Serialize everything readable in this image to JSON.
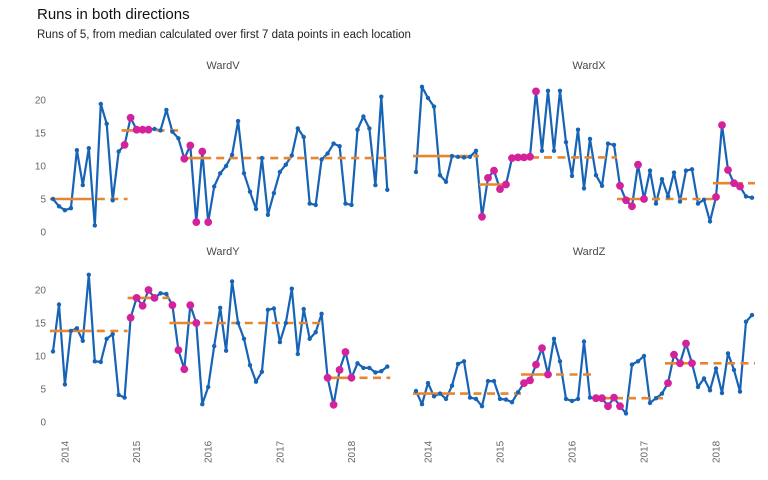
{
  "title": "Runs in both directions",
  "subtitle": "Runs of 5, from median calculated over first 7 data points in each location",
  "colors": {
    "line": "#1763b5",
    "highlight": "#d4219c",
    "median": "#e8862f",
    "axis_text": "#666666",
    "strip_text": "#4a4a4a"
  },
  "axes": {
    "y_ticks": [
      0,
      5,
      10,
      15,
      20
    ],
    "x_ticks": [
      "2014",
      "2015",
      "2016",
      "2017",
      "2018"
    ],
    "x_tick_indices": [
      2,
      14,
      26,
      38,
      50
    ],
    "ylim": [
      0,
      23
    ]
  },
  "chart_data": [
    {
      "type": "line",
      "name": "WardV",
      "values": [
        5.0,
        3.9,
        3.3,
        3.6,
        12.4,
        7.1,
        12.7,
        1.0,
        19.4,
        16.4,
        4.8,
        12.2,
        13.2,
        17.3,
        15.5,
        15.5,
        15.5,
        15.6,
        15.4,
        18.5,
        15.2,
        14.2,
        11.1,
        13.1,
        1.5,
        12.2,
        1.5,
        6.9,
        8.9,
        10.0,
        11.7,
        16.8,
        8.9,
        6.1,
        3.5,
        11.2,
        2.6,
        5.9,
        9.1,
        10.2,
        11.6,
        15.7,
        14.4,
        4.3,
        4.1,
        11.0,
        11.9,
        13.4,
        13.0,
        4.3,
        4.1,
        15.5,
        17.5,
        15.7,
        7.1,
        20.5,
        6.4
      ],
      "highlight_indices": [
        12,
        13,
        14,
        15,
        16,
        22,
        23,
        24,
        25,
        26
      ],
      "medians": [
        {
          "value": 5.0,
          "solid": [
            0,
            6
          ],
          "dashed": [
            7,
            12
          ]
        },
        {
          "value": 15.4,
          "solid": [
            12,
            16
          ],
          "dashed": [
            17,
            21
          ]
        },
        {
          "value": 11.2,
          "solid": [
            22,
            26
          ],
          "dashed": [
            27,
            56
          ]
        }
      ]
    },
    {
      "type": "line",
      "name": "WardX",
      "values": [
        9.1,
        22.0,
        20.3,
        19.0,
        8.6,
        7.6,
        11.5,
        11.4,
        11.3,
        11.4,
        12.3,
        2.3,
        8.2,
        9.3,
        6.5,
        7.2,
        11.2,
        11.3,
        11.3,
        11.4,
        21.3,
        12.3,
        21.4,
        12.3,
        21.4,
        13.6,
        8.5,
        15.5,
        6.6,
        14.1,
        8.6,
        7.0,
        13.4,
        13.2,
        7.0,
        4.8,
        3.9,
        10.2,
        5.0,
        9.3,
        4.3,
        8.0,
        5.4,
        9.0,
        4.6,
        9.3,
        9.5,
        4.3,
        4.9,
        1.6,
        5.3,
        16.2,
        9.4,
        7.4,
        6.9,
        5.4,
        5.2
      ],
      "highlight_indices": [
        11,
        12,
        13,
        14,
        15,
        16,
        17,
        18,
        19,
        20,
        34,
        35,
        36,
        37,
        38,
        50,
        51,
        52,
        53,
        54
      ],
      "medians": [
        {
          "value": 11.5,
          "solid": [
            0,
            6
          ],
          "dashed": [
            7,
            10
          ]
        },
        {
          "value": 7.2,
          "solid": [
            11,
            15
          ]
        },
        {
          "value": 11.3,
          "solid": [
            16,
            20
          ],
          "dashed": [
            21,
            33
          ]
        },
        {
          "value": 5.0,
          "solid": [
            34,
            38
          ],
          "dashed": [
            39,
            49
          ]
        },
        {
          "value": 7.4,
          "solid": [
            50,
            54
          ],
          "dashed": [
            55,
            56
          ]
        }
      ]
    },
    {
      "type": "line",
      "name": "WardY",
      "values": [
        10.7,
        17.8,
        5.7,
        13.8,
        14.2,
        12.3,
        22.3,
        9.2,
        9.1,
        12.6,
        13.3,
        4.1,
        3.7,
        15.8,
        18.8,
        17.6,
        20.0,
        18.8,
        19.5,
        19.4,
        17.7,
        10.9,
        8.0,
        17.7,
        15.0,
        2.7,
        5.3,
        11.5,
        17.3,
        10.8,
        21.3,
        15.0,
        12.6,
        8.6,
        6.1,
        7.6,
        17.0,
        17.2,
        12.1,
        15.0,
        20.2,
        10.3,
        17.1,
        12.6,
        13.6,
        16.4,
        6.7,
        2.6,
        7.9,
        10.6,
        6.7,
        8.9,
        8.2,
        8.2,
        7.5,
        7.7,
        8.4
      ],
      "highlight_indices": [
        13,
        14,
        15,
        16,
        17,
        20,
        21,
        22,
        23,
        24,
        46,
        47,
        48,
        49,
        50
      ],
      "medians": [
        {
          "value": 13.8,
          "solid": [
            0,
            6
          ],
          "dashed": [
            7,
            12
          ]
        },
        {
          "value": 18.8,
          "solid": [
            13,
            17
          ],
          "dashed": [
            18,
            19
          ]
        },
        {
          "value": 15.0,
          "solid": [
            20,
            24
          ],
          "dashed": [
            25,
            45
          ]
        },
        {
          "value": 6.7,
          "solid": [
            46,
            50
          ],
          "dashed": [
            51,
            56
          ]
        }
      ]
    },
    {
      "type": "line",
      "name": "WardZ",
      "values": [
        4.7,
        2.7,
        5.9,
        3.9,
        4.3,
        3.5,
        5.5,
        8.8,
        9.2,
        3.7,
        3.5,
        2.4,
        6.2,
        6.2,
        3.5,
        3.4,
        3.0,
        4.5,
        5.9,
        6.3,
        8.7,
        11.2,
        7.2,
        12.6,
        9.2,
        3.5,
        3.2,
        3.5,
        12.2,
        3.7,
        3.6,
        3.6,
        2.4,
        3.7,
        2.4,
        1.3,
        8.7,
        9.2,
        10.0,
        2.9,
        3.6,
        4.3,
        5.9,
        10.2,
        8.9,
        11.9,
        8.9,
        5.3,
        6.6,
        4.8,
        8.1,
        4.4,
        10.4,
        7.9,
        4.6,
        15.2,
        16.2
      ],
      "highlight_indices": [
        18,
        19,
        20,
        21,
        22,
        30,
        31,
        32,
        33,
        34,
        42,
        43,
        44,
        45,
        46
      ],
      "medians": [
        {
          "value": 4.3,
          "solid": [
            0,
            6
          ],
          "dashed": [
            7,
            17
          ]
        },
        {
          "value": 7.2,
          "solid": [
            18,
            22
          ],
          "dashed": [
            23,
            29
          ]
        },
        {
          "value": 3.6,
          "solid": [
            30,
            34
          ],
          "dashed": [
            35,
            41
          ]
        },
        {
          "value": 8.9,
          "solid": [
            42,
            46
          ],
          "dashed": [
            47,
            56
          ]
        }
      ]
    }
  ]
}
